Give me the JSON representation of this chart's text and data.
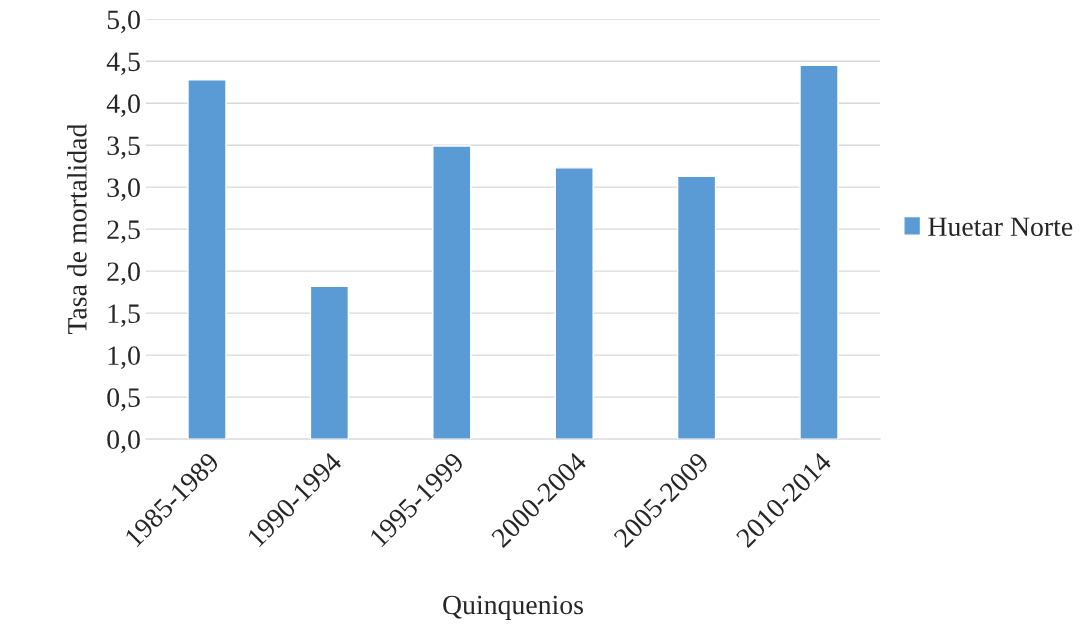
{
  "chart_data": {
    "type": "bar",
    "xlabel": "Quinquenios",
    "ylabel": "Tasa de mortalidad",
    "categories": [
      "1985-1989",
      "1990-1994",
      "1995-1999",
      "2000-2004",
      "2005-2009",
      "2010-2014"
    ],
    "series": [
      {
        "name": "Huetar Norte",
        "color": "#5b9bd5",
        "values": [
          4.28,
          1.82,
          3.49,
          3.23,
          3.13,
          4.45
        ]
      }
    ],
    "ylim": [
      0,
      5
    ],
    "yticks": [
      {
        "value": 0,
        "label": "0,0"
      },
      {
        "value": 0.5,
        "label": "0,5"
      },
      {
        "value": 1,
        "label": "1,0"
      },
      {
        "value": 1.5,
        "label": "1,5"
      },
      {
        "value": 2,
        "label": "2,0"
      },
      {
        "value": 2.5,
        "label": "2,5"
      },
      {
        "value": 3,
        "label": "3,0"
      },
      {
        "value": 3.5,
        "label": "3,5"
      },
      {
        "value": 4,
        "label": "4,0"
      },
      {
        "value": 4.5,
        "label": "4,5"
      },
      {
        "value": 5,
        "label": "5,0"
      }
    ],
    "grid": "y",
    "legend": "right"
  }
}
